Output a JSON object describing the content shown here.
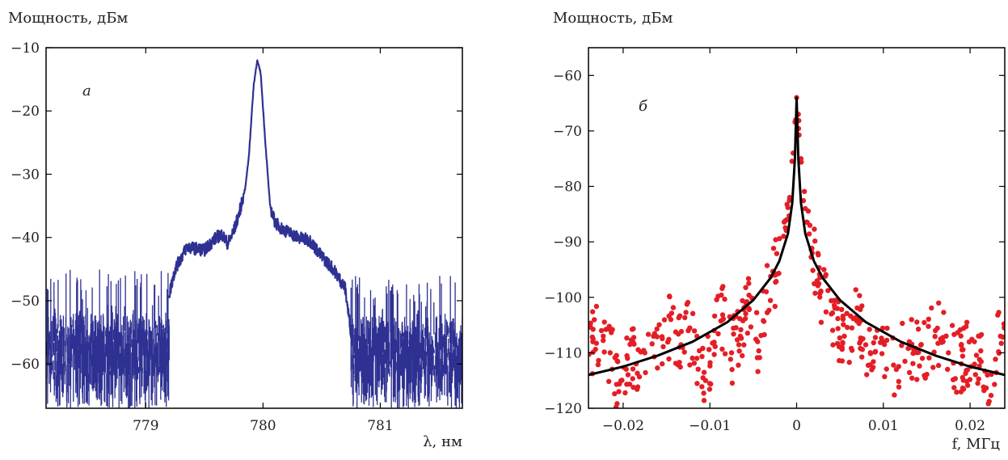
{
  "colors": {
    "spectrum": "#2e3192",
    "beat_points": "#e41e26",
    "fit_line": "#000000"
  },
  "chart_data": [
    {
      "type": "line",
      "panel_label": "а",
      "ylabel": "Мощность, дБм",
      "xlabel": "λ, нм",
      "xlim": [
        778.15,
        781.7
      ],
      "ylim": [
        -67,
        -10
      ],
      "xticks": [
        779,
        780,
        781
      ],
      "yticks": [
        -10,
        -20,
        -30,
        -40,
        -50,
        -60
      ],
      "xtick_labels": [
        "779",
        "780",
        "781"
      ],
      "ytick_labels": [
        "−10",
        "−20",
        "−30",
        "−40",
        "−50",
        "−60"
      ],
      "grid": false,
      "series": [
        {
          "color": "#2e3192",
          "x": [
            778.15,
            779.15,
            779.2,
            779.25,
            779.35,
            779.5,
            779.6,
            779.65,
            779.7,
            779.75,
            779.8,
            779.85,
            779.88,
            779.92,
            779.95,
            779.98,
            780.02,
            780.06,
            780.1,
            780.15,
            780.2,
            780.3,
            780.4,
            780.5,
            780.6,
            780.7,
            780.75,
            781.7
          ],
          "y": [
            -56,
            -57,
            -49,
            -45,
            -41.5,
            -42,
            -40,
            -39.5,
            -41,
            -39,
            -36,
            -32,
            -27,
            -16,
            -12,
            -14,
            -25,
            -35,
            -37.5,
            -38.5,
            -39,
            -40,
            -40.5,
            -43,
            -45,
            -48,
            -55,
            -58
          ],
          "noise_regions": [
            {
              "x_from": 778.15,
              "x_to": 779.2,
              "y_top": [
                -62,
                -45
              ],
              "y_bottom": [
                -67,
                -54
              ]
            },
            {
              "x_from": 780.75,
              "x_to": 781.7,
              "y_top": [
                -62,
                -46
              ],
              "y_bottom": [
                -67,
                -55
              ]
            }
          ]
        }
      ]
    },
    {
      "type": "scatter",
      "panel_label": "б",
      "ylabel": "Мощность, дБм",
      "xlabel": "f, МГц",
      "xlim": [
        -0.024,
        0.024
      ],
      "ylim": [
        -120,
        -55
      ],
      "xticks": [
        -0.02,
        -0.01,
        0,
        0.01,
        0.02
      ],
      "yticks": [
        -60,
        -70,
        -80,
        -90,
        -100,
        -110,
        -120
      ],
      "xtick_labels": [
        "−0.02",
        "−0.01",
        "0",
        "0.01",
        "0.02"
      ],
      "ytick_labels": [
        "−60",
        "−70",
        "−80",
        "−90",
        "−100",
        "−110",
        "−120"
      ],
      "grid": false,
      "series": [
        {
          "kind": "points",
          "color": "#e41e26",
          "x": [
            -0.0235,
            -0.0225,
            -0.0215,
            -0.0205,
            -0.0195,
            -0.0185,
            -0.0175,
            -0.0165,
            -0.0155,
            -0.0145,
            -0.0135,
            -0.0125,
            -0.0115,
            -0.0105,
            -0.0095,
            -0.0085,
            -0.0075,
            -0.0065,
            -0.0055,
            -0.0045,
            -0.0035,
            -0.0025,
            -0.0015,
            -0.0008,
            -0.0004,
            -0.0001,
            0.0,
            0.0002,
            0.0005,
            0.001,
            0.0018,
            0.0028,
            0.004,
            0.0055,
            0.007,
            0.0085,
            0.01,
            0.0115,
            0.013,
            0.0145,
            0.016,
            0.0175,
            0.019,
            0.0205,
            0.022,
            0.0235
          ],
          "y": [
            -108,
            -106,
            -110,
            -117,
            -111,
            -112,
            -110,
            -107,
            -112,
            -104,
            -109,
            -106,
            -111,
            -115,
            -106,
            -104,
            -110,
            -107,
            -102,
            -108,
            -99,
            -96,
            -89,
            -82,
            -74,
            -68,
            -64,
            -67,
            -75,
            -84,
            -92,
            -99,
            -103,
            -107,
            -104,
            -110,
            -108,
            -113,
            -108,
            -111,
            -106,
            -110,
            -112,
            -108,
            -114,
            -107
          ]
        },
        {
          "kind": "fit",
          "color": "#000000",
          "x": [
            -0.024,
            -0.02,
            -0.016,
            -0.012,
            -0.008,
            -0.005,
            -0.003,
            -0.002,
            -0.001,
            -0.0005,
            -0.0002,
            0,
            0.0002,
            0.0005,
            0.001,
            0.002,
            0.003,
            0.005,
            0.008,
            0.012,
            0.016,
            0.02,
            0.024
          ],
          "y": [
            -114,
            -112.5,
            -110.5,
            -108,
            -104.5,
            -100.5,
            -96.5,
            -93.5,
            -88.5,
            -83,
            -75,
            -64,
            -75,
            -83,
            -88.5,
            -93.5,
            -96.5,
            -100.5,
            -104.5,
            -108,
            -110.5,
            -112.5,
            -114
          ]
        }
      ]
    }
  ]
}
